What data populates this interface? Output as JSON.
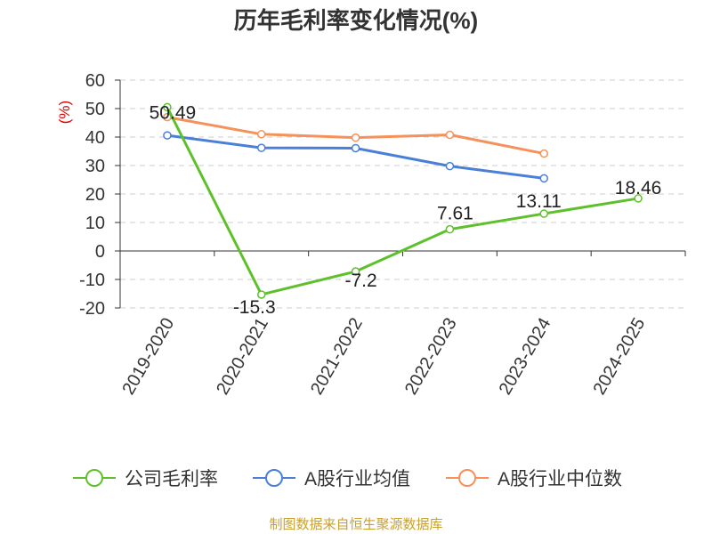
{
  "chart_data": {
    "type": "line",
    "title": "历年毛利率变化情况(%)",
    "y_unit": "(%)",
    "categories": [
      "2019-2020",
      "2020-2021",
      "2021-2022",
      "2022-2023",
      "2023-2024",
      "2024-2025"
    ],
    "ylim": [
      -20,
      60
    ],
    "yticks": [
      60,
      50,
      40,
      30,
      20,
      10,
      0,
      -10,
      -20
    ],
    "grid": true,
    "legend_position": "bottom",
    "series": [
      {
        "name": "公司毛利率",
        "color": "#5ec02a",
        "values": [
          50.49,
          -15.3,
          -7.2,
          7.61,
          13.11,
          18.46
        ],
        "labels": [
          "50.49",
          "-15.3",
          "-7.2",
          "7.61",
          "13.11",
          "18.46"
        ]
      },
      {
        "name": "A股行业均值",
        "color": "#4a7fd8",
        "values": [
          40.6,
          36.2,
          36.1,
          29.8,
          25.5,
          null
        ]
      },
      {
        "name": "A股行业中位数",
        "color": "#f5915a",
        "values": [
          47.0,
          41.0,
          39.8,
          40.8,
          34.2,
          null
        ]
      }
    ],
    "source": "制图数据来自恒生聚源数据库"
  }
}
